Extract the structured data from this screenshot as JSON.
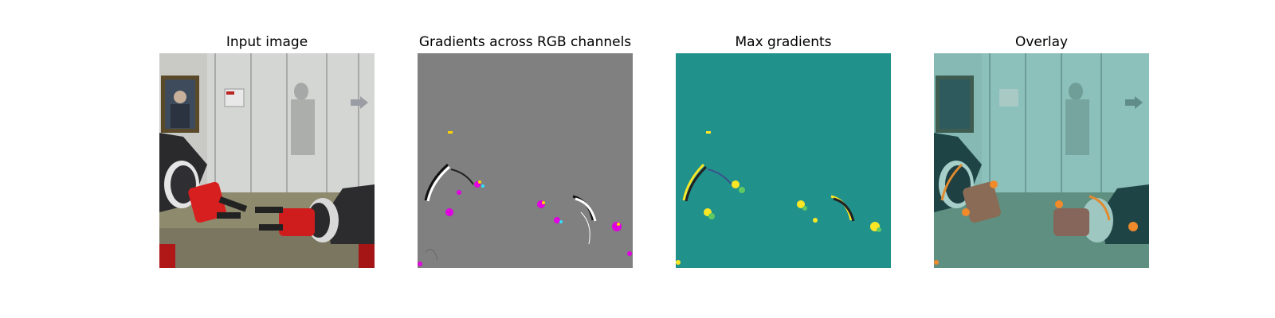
{
  "figure": {
    "panels": [
      {
        "title": "Input image"
      },
      {
        "title": "Gradients across RGB channels"
      },
      {
        "title": "Max gradients"
      },
      {
        "title": "Overlay"
      }
    ]
  },
  "colors": {
    "gradient_bg": "#808080",
    "max_grad_bg": "#21918c",
    "highlight_yellow": "#fde725",
    "highlight_magenta": "#e000e0",
    "gripper_red": "#d81f1f",
    "overlay_tint": "#2aa39a"
  }
}
